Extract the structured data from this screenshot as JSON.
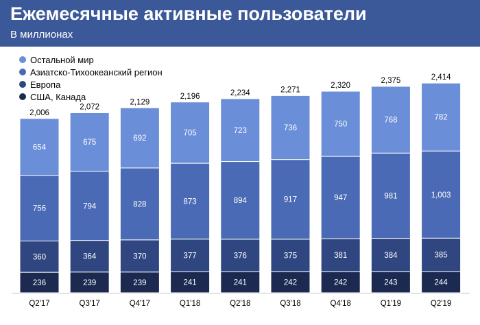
{
  "header": {
    "title": "Ежемесячные активные пользователи",
    "subtitle": "В миллионах"
  },
  "colors": {
    "header_bg": "#3b5998",
    "rest_of_world": "#6b8ed9",
    "asia_pacific": "#4a6ab5",
    "europe": "#2f4680",
    "us_canada": "#1c2a52"
  },
  "chart_data": {
    "type": "bar",
    "stacked": true,
    "title": "Ежемесячные активные пользователи",
    "subtitle": "В миллионах",
    "categories": [
      "Q2'17",
      "Q3'17",
      "Q4'17",
      "Q1'18",
      "Q2'18",
      "Q3'18",
      "Q4'18",
      "Q1'19",
      "Q2'19"
    ],
    "series": [
      {
        "name": "США, Канада",
        "color": "#1c2a52",
        "values": [
          236,
          239,
          239,
          241,
          241,
          242,
          242,
          243,
          244
        ],
        "labels": [
          "236",
          "239",
          "239",
          "241",
          "241",
          "242",
          "242",
          "243",
          "244"
        ]
      },
      {
        "name": "Европа",
        "color": "#2f4680",
        "values": [
          360,
          364,
          370,
          377,
          376,
          375,
          381,
          384,
          385
        ],
        "labels": [
          "360",
          "364",
          "370",
          "377",
          "376",
          "375",
          "381",
          "384",
          "385"
        ]
      },
      {
        "name": "Азиатско-Тихоокеанский регион",
        "color": "#4a6ab5",
        "values": [
          756,
          794,
          828,
          873,
          894,
          917,
          947,
          981,
          1003
        ],
        "labels": [
          "756",
          "794",
          "828",
          "873",
          "894",
          "917",
          "947",
          "981",
          "1,003"
        ]
      },
      {
        "name": "Остальной мир",
        "color": "#6b8ed9",
        "values": [
          654,
          675,
          692,
          705,
          723,
          736,
          750,
          768,
          782
        ],
        "labels": [
          "654",
          "675",
          "692",
          "705",
          "723",
          "736",
          "750",
          "768",
          "782"
        ]
      }
    ],
    "totals": [
      2006,
      2072,
      2129,
      2196,
      2234,
      2271,
      2320,
      2375,
      2414
    ],
    "total_labels": [
      "2,006",
      "2,072",
      "2,129",
      "2,196",
      "2,234",
      "2,271",
      "2,320",
      "2,375",
      "2,414"
    ],
    "legend_order": [
      "Остальной мир",
      "Азиатско-Тихоокеанский регион",
      "Европа",
      "США, Канада"
    ],
    "legend_position": "top-left",
    "grid": false
  }
}
